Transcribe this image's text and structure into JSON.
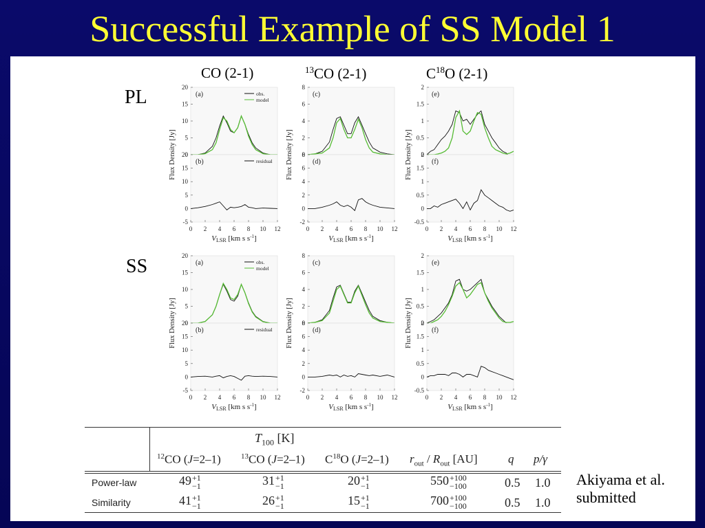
{
  "title": "Successful Example of SS Model 1",
  "columns": [
    "CO (2-1)",
    "13CO (2-1)",
    "C18O (2-1)"
  ],
  "column_parts": [
    {
      "sup": "",
      "pre": "CO (2-1)",
      "post": ""
    },
    {
      "sup": "13",
      "pre": "",
      "post": "CO (2-1)"
    },
    {
      "sup": "18",
      "pre": "C",
      "post": "O (2-1)"
    }
  ],
  "row_labels": [
    "PL",
    "SS"
  ],
  "legend": {
    "obs": "obs.",
    "model": "model",
    "residual": "residual"
  },
  "ylabel": "Flux Density [Jy]",
  "xlabel": {
    "main": "V",
    "sub": "LSR",
    "units": "[km s",
    "sup": "-1",
    "close": "]"
  },
  "colors": {
    "obs": "#111111",
    "model": "#55bb33",
    "residual": "#111111",
    "title": "#ffff33",
    "background": "#07075f"
  },
  "chart_data": [
    {
      "type": "line",
      "group": "PL",
      "molecule": "CO (2-1)",
      "x": [
        0,
        1,
        2,
        3,
        3.5,
        4,
        4.5,
        5,
        5.5,
        6,
        6.5,
        7,
        7.5,
        8,
        8.5,
        9,
        10,
        11,
        12
      ],
      "xlim": [
        0,
        12
      ],
      "xticks": [
        0,
        2,
        4,
        6,
        8,
        10,
        12
      ],
      "top": {
        "label": "(a)",
        "ylim": [
          0,
          20
        ],
        "yticks": [
          0,
          5,
          10,
          15,
          20
        ],
        "legend": [
          "obs.",
          "model"
        ],
        "series": [
          {
            "name": "obs.",
            "values": [
              0,
              0,
              0.5,
              2.5,
              5,
              8.5,
              11.5,
              9.5,
              7,
              6.5,
              8,
              11.5,
              9,
              6,
              3.5,
              2,
              0.5,
              0,
              0
            ]
          },
          {
            "name": "model",
            "values": [
              0,
              0,
              0.3,
              1.5,
              3.5,
              7.5,
              11,
              10,
              7.5,
              6.5,
              8,
              11.5,
              9,
              5.5,
              3,
              1.5,
              0.3,
              0,
              0
            ]
          }
        ]
      },
      "bottom": {
        "label": "(b)",
        "ylim": [
          -5,
          20
        ],
        "yticks": [
          -5,
          0,
          5,
          10,
          15,
          20
        ],
        "legend": [
          "residual"
        ],
        "series": [
          {
            "name": "residual",
            "values": [
              0,
              0.3,
              0.8,
              1.5,
              2,
              2.5,
              1,
              -0.5,
              0.5,
              0.3,
              0.5,
              0.8,
              1.5,
              0.5,
              0.3,
              0,
              0.2,
              0.1,
              0
            ]
          }
        ]
      }
    },
    {
      "type": "line",
      "group": "PL",
      "molecule": "13CO (2-1)",
      "x": [
        0,
        1,
        2,
        3,
        3.5,
        4,
        4.5,
        5,
        5.5,
        6,
        6.5,
        7,
        7.5,
        8,
        8.5,
        9,
        10,
        11,
        12
      ],
      "xlim": [
        0,
        12
      ],
      "xticks": [
        0,
        2,
        4,
        6,
        8,
        10,
        12
      ],
      "top": {
        "label": "(c)",
        "ylim": [
          0,
          8
        ],
        "yticks": [
          0,
          2,
          4,
          6,
          8
        ],
        "series": [
          {
            "name": "obs.",
            "values": [
              0,
              0.1,
              0.4,
              1.5,
              3,
              4.3,
              4.5,
              3.5,
              2.5,
              2.5,
              3.8,
              4.5,
              3.5,
              2.5,
              1.5,
              0.8,
              0.3,
              0.1,
              0
            ]
          },
          {
            "name": "model",
            "values": [
              0,
              0.1,
              0.2,
              0.8,
              2,
              3.8,
              4.3,
              3,
              2,
              2,
              3,
              4.2,
              3.2,
              1.8,
              0.8,
              0.3,
              0.1,
              0,
              0
            ]
          }
        ]
      },
      "bottom": {
        "label": "(d)",
        "ylim": [
          -2,
          8
        ],
        "yticks": [
          -2,
          0,
          2,
          4,
          6,
          8
        ],
        "series": [
          {
            "name": "residual",
            "values": [
              0,
              0,
              0.2,
              0.5,
              0.7,
              1,
              0.5,
              0.3,
              0.5,
              0.2,
              -0.3,
              1.3,
              1.5,
              1,
              0.7,
              0.5,
              0.2,
              0.1,
              0
            ]
          }
        ]
      }
    },
    {
      "type": "line",
      "group": "PL",
      "molecule": "C18O (2-1)",
      "x": [
        0,
        0.5,
        1,
        1.5,
        2,
        2.5,
        3,
        3.5,
        4,
        4.5,
        5,
        5.5,
        6,
        6.5,
        7,
        7.5,
        8,
        8.5,
        9,
        9.5,
        10,
        10.5,
        11,
        11.5,
        12
      ],
      "xlim": [
        0,
        12
      ],
      "xticks": [
        0,
        2,
        4,
        6,
        8,
        10,
        12
      ],
      "top": {
        "label": "(e)",
        "ylim": [
          0,
          2
        ],
        "yticks": [
          0,
          0.5,
          1,
          1.5,
          2
        ],
        "series": [
          {
            "name": "obs.",
            "values": [
              0,
              0.1,
              0.15,
              0.3,
              0.45,
              0.55,
              0.7,
              0.9,
              1.3,
              1.25,
              1,
              1.05,
              0.9,
              1.05,
              1.2,
              1.3,
              0.9,
              0.7,
              0.5,
              0.35,
              0.2,
              0.1,
              0.05,
              -0.1,
              0
            ]
          },
          {
            "name": "model",
            "values": [
              0,
              0,
              0,
              0.02,
              0.05,
              0.1,
              0.2,
              0.5,
              1.1,
              1.3,
              0.7,
              0.6,
              0.7,
              1,
              1.25,
              1.2,
              0.8,
              0.5,
              0.25,
              0.15,
              0.1,
              0.05,
              0.02,
              0.05,
              0.1
            ]
          }
        ]
      },
      "bottom": {
        "label": "(f)",
        "ylim": [
          -0.5,
          2
        ],
        "yticks": [
          -0.5,
          0,
          0.5,
          1,
          1.5,
          2
        ],
        "series": [
          {
            "name": "residual",
            "values": [
              0,
              0,
              0.1,
              0.05,
              0.15,
              0.2,
              0.25,
              0.3,
              0.35,
              0.2,
              0,
              0.25,
              -0.05,
              0.2,
              0.3,
              0.7,
              0.5,
              0.4,
              0.3,
              0.2,
              0.1,
              0.05,
              -0.05,
              -0.1,
              -0.05
            ]
          }
        ]
      }
    },
    {
      "type": "line",
      "group": "SS",
      "molecule": "CO (2-1)",
      "x": [
        0,
        1,
        2,
        3,
        3.5,
        4,
        4.5,
        5,
        5.5,
        6,
        6.5,
        7,
        7.5,
        8,
        8.5,
        9,
        10,
        11,
        12
      ],
      "xlim": [
        0,
        12
      ],
      "xticks": [
        0,
        2,
        4,
        6,
        8,
        10,
        12
      ],
      "top": {
        "label": "(a)",
        "ylim": [
          0,
          20
        ],
        "yticks": [
          0,
          5,
          10,
          15,
          20
        ],
        "legend": [
          "obs.",
          "model"
        ],
        "series": [
          {
            "name": "obs.",
            "values": [
              0,
              0,
              0.5,
              2.5,
              5,
              8.5,
              11.5,
              9.5,
              7,
              6.5,
              8,
              11.5,
              9,
              6,
              3.5,
              2,
              0.5,
              0,
              0
            ]
          },
          {
            "name": "model",
            "values": [
              0,
              0,
              0.5,
              2.5,
              5,
              8.5,
              11.8,
              10,
              7.5,
              7,
              8.5,
              11.5,
              9,
              5.8,
              3.3,
              1.8,
              0.4,
              0,
              0
            ]
          }
        ]
      },
      "bottom": {
        "label": "(b)",
        "ylim": [
          -5,
          20
        ],
        "yticks": [
          -5,
          0,
          5,
          10,
          15,
          20
        ],
        "legend": [
          "residual"
        ],
        "series": [
          {
            "name": "residual",
            "values": [
              0,
              0.2,
              0.3,
              0,
              0.3,
              0.5,
              -0.3,
              0.2,
              0.5,
              0.2,
              -0.5,
              -1.2,
              0.3,
              0.5,
              0.3,
              0.2,
              0.3,
              0.2,
              0
            ]
          }
        ]
      }
    },
    {
      "type": "line",
      "group": "SS",
      "molecule": "13CO (2-1)",
      "x": [
        0,
        1,
        2,
        3,
        3.5,
        4,
        4.5,
        5,
        5.5,
        6,
        6.5,
        7,
        7.5,
        8,
        8.5,
        9,
        10,
        11,
        12
      ],
      "xlim": [
        0,
        12
      ],
      "xticks": [
        0,
        2,
        4,
        6,
        8,
        10,
        12
      ],
      "top": {
        "label": "(c)",
        "ylim": [
          0,
          8
        ],
        "yticks": [
          0,
          2,
          4,
          6,
          8
        ],
        "series": [
          {
            "name": "obs.",
            "values": [
              0,
              0.1,
              0.4,
              1.5,
              3,
              4.3,
              4.5,
              3.5,
              2.5,
              2.5,
              3.8,
              4.5,
              3.5,
              2.5,
              1.5,
              0.8,
              0.3,
              0.1,
              0
            ]
          },
          {
            "name": "model",
            "values": [
              0,
              0.1,
              0.3,
              1.2,
              2.6,
              4,
              4.4,
              3.4,
              2.4,
              2.4,
              3.6,
              4.4,
              3.3,
              2.2,
              1.2,
              0.6,
              0.2,
              0.1,
              0
            ]
          }
        ]
      },
      "bottom": {
        "label": "(d)",
        "ylim": [
          -2,
          8
        ],
        "yticks": [
          -2,
          0,
          2,
          4,
          6,
          8
        ],
        "series": [
          {
            "name": "residual",
            "values": [
              0,
              0,
              0.1,
              0.3,
              0.2,
              0.3,
              0,
              0.3,
              0.1,
              0.2,
              0,
              0.5,
              0.4,
              0.3,
              0.2,
              0.3,
              0.1,
              0.3,
              0
            ]
          }
        ]
      }
    },
    {
      "type": "line",
      "group": "SS",
      "molecule": "C18O (2-1)",
      "x": [
        0,
        0.5,
        1,
        1.5,
        2,
        2.5,
        3,
        3.5,
        4,
        4.5,
        5,
        5.5,
        6,
        6.5,
        7,
        7.5,
        8,
        8.5,
        9,
        9.5,
        10,
        10.5,
        11,
        11.5,
        12
      ],
      "xlim": [
        0,
        12
      ],
      "xticks": [
        0,
        2,
        4,
        6,
        8,
        10,
        12
      ],
      "top": {
        "label": "(e)",
        "ylim": [
          0,
          2
        ],
        "yticks": [
          0,
          0.5,
          1,
          1.5,
          2
        ],
        "series": [
          {
            "name": "obs.",
            "values": [
              0,
              0.05,
              0.1,
              0.2,
              0.3,
              0.45,
              0.6,
              0.85,
              1.25,
              1.3,
              1,
              0.95,
              1,
              1.1,
              1.2,
              1.3,
              0.9,
              0.7,
              0.5,
              0.35,
              0.2,
              0.1,
              0,
              -0.1,
              -0.05
            ]
          },
          {
            "name": "model",
            "values": [
              0,
              0,
              0.05,
              0.1,
              0.2,
              0.35,
              0.55,
              0.8,
              1.1,
              1.2,
              1,
              0.75,
              0.85,
              1,
              1.15,
              1.2,
              0.9,
              0.65,
              0.45,
              0.3,
              0.15,
              0.05,
              0.02,
              0.02,
              0.05
            ]
          }
        ]
      },
      "bottom": {
        "label": "(f)",
        "ylim": [
          -0.5,
          2
        ],
        "yticks": [
          -0.5,
          0,
          0.5,
          1,
          1.5,
          2
        ],
        "series": [
          {
            "name": "residual",
            "values": [
              0,
              0.05,
              0.05,
              0.1,
              0.1,
              0.1,
              0.05,
              0.15,
              0.15,
              0.1,
              0,
              0.1,
              0.1,
              0.05,
              0,
              0.4,
              0.35,
              0.25,
              0.2,
              0.15,
              0.1,
              0.05,
              0,
              -0.05,
              -0.1
            ]
          }
        ]
      }
    }
  ],
  "table": {
    "group_header": "T",
    "group_header_sub": "100",
    "group_header_unit": "[K]",
    "headers": [
      {
        "sup": "12",
        "text": "CO (",
        "it": "J",
        "rest": "=2–1)"
      },
      {
        "sup": "13",
        "text": "CO (",
        "it": "J",
        "rest": "=2–1)"
      },
      {
        "pre": "C",
        "sup": "18",
        "text": "O (",
        "it": "J",
        "rest": "=2–1)"
      }
    ],
    "rout_header": {
      "r": "r",
      "rsub": "out",
      "slash": " / ",
      "R": "R",
      "Rsub": "out",
      "unit": " [AU]"
    },
    "q_header": "q",
    "pg_header": "p/γ",
    "rows": [
      {
        "name": "Power-law",
        "co12": "49",
        "co13": "31",
        "c18o": "20",
        "rout": "550",
        "rout_plus": "+100",
        "rout_minus": "−100",
        "q": "0.5",
        "pg": "1.0"
      },
      {
        "name": "Similarity",
        "co12": "41",
        "co13": "26",
        "c18o": "15",
        "rout": "700",
        "rout_plus": "+100",
        "rout_minus": "−100",
        "q": "0.5",
        "pg": "1.0"
      }
    ],
    "err_plus": "+1",
    "err_minus": "−1"
  },
  "citation": [
    "Akiyama et al.",
    "submitted"
  ]
}
